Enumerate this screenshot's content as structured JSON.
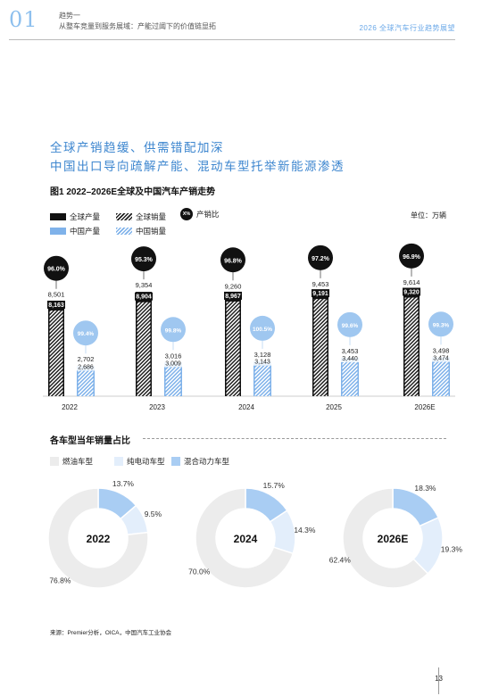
{
  "header": {
    "chapter_number": "01",
    "chapter_title": "趋势一",
    "chapter_subtitle": "从整车竞量到服务展域：产能过阈下的价值链显拓",
    "report_title": "2026 全球汽车行业趋势展望"
  },
  "headline": {
    "line1": "全球产销趋缓、供需错配加深",
    "line2": "中国出口导向疏解产能、混动车型托举新能源渗透"
  },
  "figure": {
    "title": "图1 2022–2026E全球及中国汽车产销走势",
    "unit": "单位：万辆",
    "legend": {
      "global_production": "全球产量",
      "global_sales": "全球销量",
      "ratio_icon": "X%",
      "ratio": "产销比",
      "china_production": "中国产量",
      "china_sales": "中国销量"
    }
  },
  "chart_data": [
    {
      "type": "bar",
      "categories": [
        "2022",
        "2023",
        "2024",
        "2025",
        "2026E"
      ],
      "series": [
        {
          "name": "全球产量",
          "values": [
            8501,
            9354,
            9260,
            9453,
            9614
          ],
          "labels": [
            "8,501",
            "9,354",
            "9,260",
            "9,453",
            "9,614"
          ],
          "style": "solid",
          "color": "#111111"
        },
        {
          "name": "全球销量",
          "values": [
            8163,
            8904,
            8967,
            9191,
            9320
          ],
          "labels": [
            "8,163",
            "8,904",
            "8,967",
            "9,191",
            "9,320"
          ],
          "style": "hatch",
          "color": "#111111"
        },
        {
          "name": "中国产量",
          "values": [
            2702,
            3016,
            3128,
            3453,
            3498
          ],
          "labels": [
            "2,702",
            "3,016",
            "3,128",
            "3,453",
            "3,498"
          ],
          "style": "solid",
          "color": "#7fb2ea"
        },
        {
          "name": "中国销量",
          "values": [
            2686,
            3009,
            3143,
            3440,
            3474
          ],
          "labels": [
            "2,686",
            "3,009",
            "3,143",
            "3,440",
            "3,474"
          ],
          "style": "hatch",
          "color": "#7fb2ea"
        }
      ],
      "ratios": {
        "global": [
          "96.0%",
          "95.3%",
          "96.8%",
          "97.2%",
          "96.9%"
        ],
        "china": [
          "99.4%",
          "99.8%",
          "100.5%",
          "99.6%",
          "99.3%"
        ]
      },
      "ylim": [
        0,
        10000
      ]
    },
    {
      "type": "pie",
      "title": "各车型当年销量占比",
      "legend": [
        "燃油车型",
        "纯电动车型",
        "混合动力车型"
      ],
      "colors": [
        "#ececec",
        "#e3eefb",
        "#a9cdf3"
      ],
      "charts": [
        {
          "label": "2022",
          "values": [
            76.8,
            9.5,
            13.7
          ],
          "value_labels": [
            "76.8%",
            "9.5%",
            "13.7%"
          ]
        },
        {
          "label": "2024",
          "values": [
            70.0,
            14.3,
            15.7
          ],
          "value_labels": [
            "70.0%",
            "14.3%",
            "15.7%"
          ]
        },
        {
          "label": "2026E",
          "values": [
            62.4,
            19.3,
            18.3
          ],
          "value_labels": [
            "62.4%",
            "19.3%",
            "18.3%"
          ]
        }
      ]
    }
  ],
  "footer": {
    "source": "来源：Premier分析，OICA，中国汽车工业协会",
    "page_number": "13"
  }
}
